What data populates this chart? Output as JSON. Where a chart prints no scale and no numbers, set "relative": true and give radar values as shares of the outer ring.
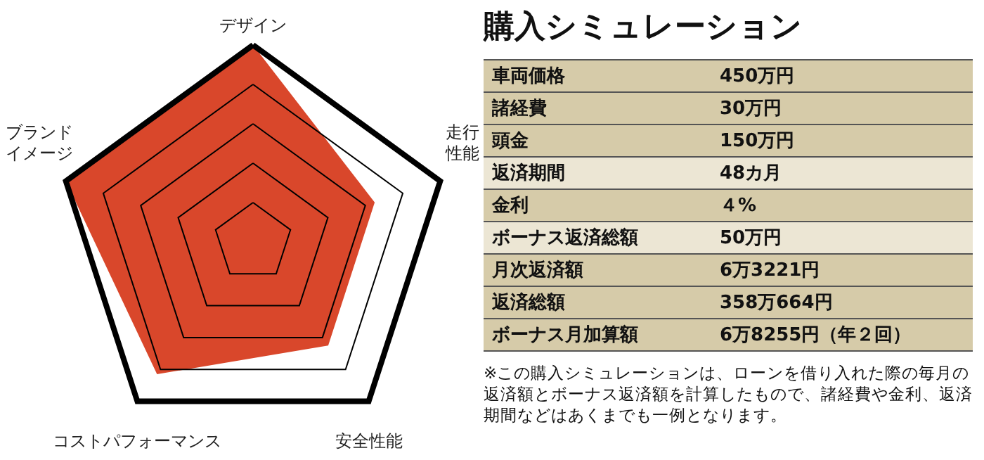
{
  "chart_data": [
    {
      "type": "radar",
      "relative": true,
      "categories": [
        "デザイン",
        "走行性能",
        "安全性能",
        "コストパフォーマンス",
        "ブランドイメージ"
      ],
      "series": [
        {
          "color": "#d9472b",
          "values": [
            1,
            0.65,
            0.65,
            0.83,
            1
          ]
        }
      ]
    },
    {
      "type": "other",
      "title": "購入シミュレーション",
      "categories": [
        "車両価格",
        "諸経費",
        "頭金",
        "返済期間",
        "金利",
        "ボーナス返済総額",
        "月次返済額",
        "返済総額",
        "ボーナス月加算額"
      ],
      "value_labels": [
        "450万円",
        "30万円",
        "150万円",
        "48カ月",
        "４%",
        "50万円",
        "6万3221円",
        "358万664円",
        "6万8255円（年２回）"
      ],
      "annotations": [
        "※この購入シミュレーションは、ローンを借り入れた際の毎月の返済額とボーナス返済額を計算したもので、諸経費や金利、返済期間などはあくまでも一例となります。"
      ]
    }
  ]
}
